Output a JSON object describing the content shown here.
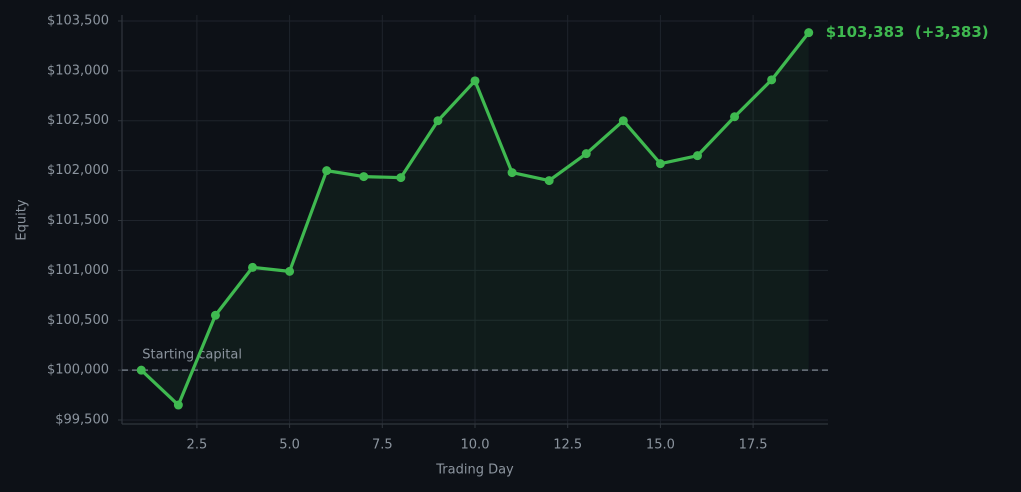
{
  "chart_data": {
    "type": "line",
    "x_label": "Trading Day",
    "y_label": "Equity",
    "x": [
      1,
      2,
      3,
      4,
      5,
      6,
      7,
      8,
      9,
      10,
      11,
      12,
      13,
      14,
      15,
      16,
      17,
      18,
      19
    ],
    "series": [
      {
        "name": "Equity",
        "color": "#3fb950",
        "values": [
          100000,
          99650,
          100550,
          101030,
          100990,
          102000,
          101940,
          101930,
          102500,
          102900,
          101980,
          101900,
          102170,
          102500,
          102070,
          102150,
          102540,
          102910,
          103383
        ]
      }
    ],
    "end_label": "$103,383  (+3,383)",
    "reference_line": {
      "value": 100000,
      "label": "Starting capital"
    },
    "xlim": [
      0.48,
      19.52
    ],
    "xticks": [
      2.5,
      {
        "value": 5,
        "label": "5.0"
      },
      7.5,
      {
        "value": 10,
        "label": "10.0"
      },
      12.5,
      {
        "value": 15,
        "label": "15.0"
      },
      17.5
    ],
    "ylim": [
      99460,
      103560
    ],
    "yticks": [
      {
        "value": 99500,
        "label": "$99,500"
      },
      {
        "value": 100000,
        "label": "$100,000"
      },
      {
        "value": 100500,
        "label": "$100,500"
      },
      {
        "value": 101000,
        "label": "$101,000"
      },
      {
        "value": 101500,
        "label": "$101,500"
      },
      {
        "value": 102000,
        "label": "$102,000"
      },
      {
        "value": 102500,
        "label": "$102,500"
      },
      {
        "value": 103000,
        "label": "$103,000"
      },
      {
        "value": 103500,
        "label": "$103,500"
      }
    ],
    "grid": true
  }
}
